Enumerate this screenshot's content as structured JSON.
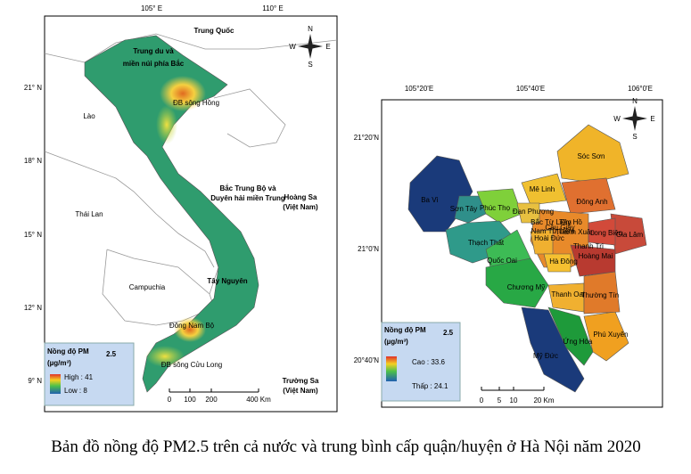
{
  "left_map": {
    "lon_labels": [
      "105° E",
      "110° E"
    ],
    "lat_labels": [
      "21° N",
      "18° N",
      "15° N",
      "12° N",
      "9° N"
    ],
    "places": [
      [
        "Trung Quốc"
      ],
      [
        "Trung du và",
        "miền núi phía Bắc"
      ],
      [
        "ĐB sông Hồng"
      ],
      [
        "Lào"
      ],
      [
        "Bắc Trung Bộ và",
        "Duyên hải miền Trung"
      ],
      [
        "Hoàng Sa",
        "(Việt Nam)"
      ],
      [
        "Thái Lan"
      ],
      [
        "Tây Nguyên"
      ],
      [
        "Campuchia"
      ],
      [
        "Đông Nam Bộ"
      ],
      [
        "ĐB sông Cửu Long"
      ],
      [
        "Trường Sa",
        "(Việt Nam)"
      ]
    ],
    "compass": {
      "n": "N",
      "e": "E",
      "s": "S",
      "w": "W"
    },
    "legend": {
      "title": "Nồng độ PM",
      "title_sub": "2.5",
      "unit": "(µg/m³)",
      "high": "High : 41",
      "low": "Low : 8"
    },
    "scale": [
      "0",
      "100",
      "200",
      "400 Km"
    ]
  },
  "right_map": {
    "lon_labels": [
      "105°20'E",
      "105°40'E",
      "106°0'E"
    ],
    "lat_labels": [
      "21°20'N",
      "21°0'N",
      "20°40'N"
    ],
    "districts": [
      "Sóc Sơn",
      "Mê Linh",
      "Đông Anh",
      "Ba Vì",
      "Sơn Tây",
      "Phúc Thọ",
      "Đan Phượng",
      "Gia Lâm",
      "Long Biên",
      "Thạch Thất",
      "Quốc Oai",
      "Hoài Đức",
      "Hà Đông",
      "Hoàng Mai",
      "Thanh Trì",
      "Chương Mỹ",
      "Thanh Oai",
      "Thường Tín",
      "Ứng Hòa",
      "Phú Xuyên",
      "Mỹ Đức",
      "Bắc Từ Liêm",
      "Tây Hồ",
      "Cầu Giấy",
      "Nam Từ Liêm",
      "Thanh Xuân"
    ],
    "compass": {
      "n": "N",
      "e": "E",
      "s": "S",
      "w": "W"
    },
    "legend": {
      "title": "Nồng độ PM",
      "title_sub": "2.5",
      "unit": "(µg/m³)",
      "high": "Cao : 33.6",
      "low": "Thấp : 24.1"
    },
    "scale": [
      "0",
      "5",
      "10",
      "20 Km"
    ]
  },
  "caption": "Bản đồ nồng độ PM2.5 trên cả nước và trung bình cấp quận/huyện ở Hà Nội năm 2020"
}
